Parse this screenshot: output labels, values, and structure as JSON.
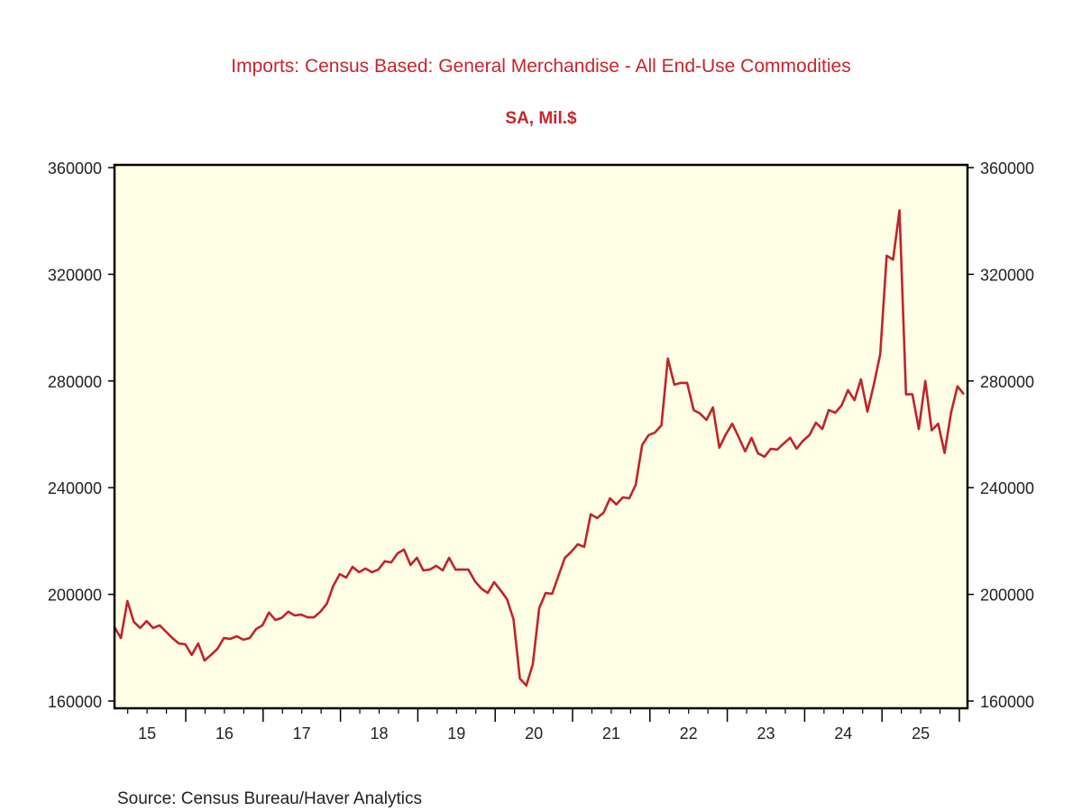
{
  "chart_data": {
    "type": "line",
    "title": "Imports: Census Based: General Merchandise - All End-Use Commodities",
    "subtitle": "SA, Mil.$",
    "source": "Source:  Census Bureau/Haver Analytics",
    "xlabel": "",
    "ylabel": "",
    "ylim": [
      160000,
      360000
    ],
    "yticks": [
      "160000",
      "200000",
      "240000",
      "280000",
      "320000",
      "360000"
    ],
    "ytick_values": [
      160000,
      200000,
      240000,
      280000,
      320000,
      360000
    ],
    "xtick_labels": [
      "15",
      "16",
      "17",
      "18",
      "19",
      "20",
      "21",
      "22",
      "23",
      "24",
      "25"
    ],
    "x_start": "2015-01",
    "x_end": "2025-12",
    "frequency": "monthly",
    "grid": false,
    "dual_y_axis": true,
    "colors": {
      "line": "#c0232b",
      "plot_background": "#ffffe6",
      "text": "#c8242c"
    },
    "values": [
      187700,
      183600,
      197500,
      189700,
      187400,
      190000,
      187400,
      188400,
      186000,
      183600,
      181600,
      181300,
      177300,
      181600,
      175200,
      177300,
      179600,
      183600,
      183300,
      184300,
      183000,
      183600,
      187000,
      188400,
      193200,
      190400,
      191200,
      193500,
      192100,
      192400,
      191400,
      191400,
      193500,
      196500,
      203200,
      207600,
      206300,
      210300,
      208300,
      209700,
      208300,
      209300,
      212400,
      212000,
      215400,
      216800,
      211000,
      213700,
      209000,
      209300,
      210700,
      209000,
      213700,
      209300,
      209300,
      209300,
      205000,
      202200,
      200500,
      204600,
      201500,
      198200,
      190700,
      168400,
      165800,
      173800,
      194800,
      200500,
      200200,
      207000,
      213700,
      216000,
      218800,
      217800,
      230000,
      228600,
      230600,
      236000,
      233700,
      236400,
      236000,
      241000,
      256000,
      259700,
      260700,
      263400,
      288400,
      278600,
      279300,
      279300,
      269100,
      267800,
      265400,
      270100,
      255000,
      260000,
      264000,
      259000,
      253600,
      258700,
      252900,
      251600,
      254600,
      254300,
      256600,
      258700,
      254600,
      257600,
      259700,
      264400,
      262000,
      269100,
      268100,
      270800,
      276600,
      272800,
      280600,
      268500,
      278600,
      290000,
      327000,
      325500,
      344000,
      275000,
      275000,
      262000,
      280000,
      261500,
      264000,
      253000,
      268000,
      278000,
      275000
    ]
  }
}
